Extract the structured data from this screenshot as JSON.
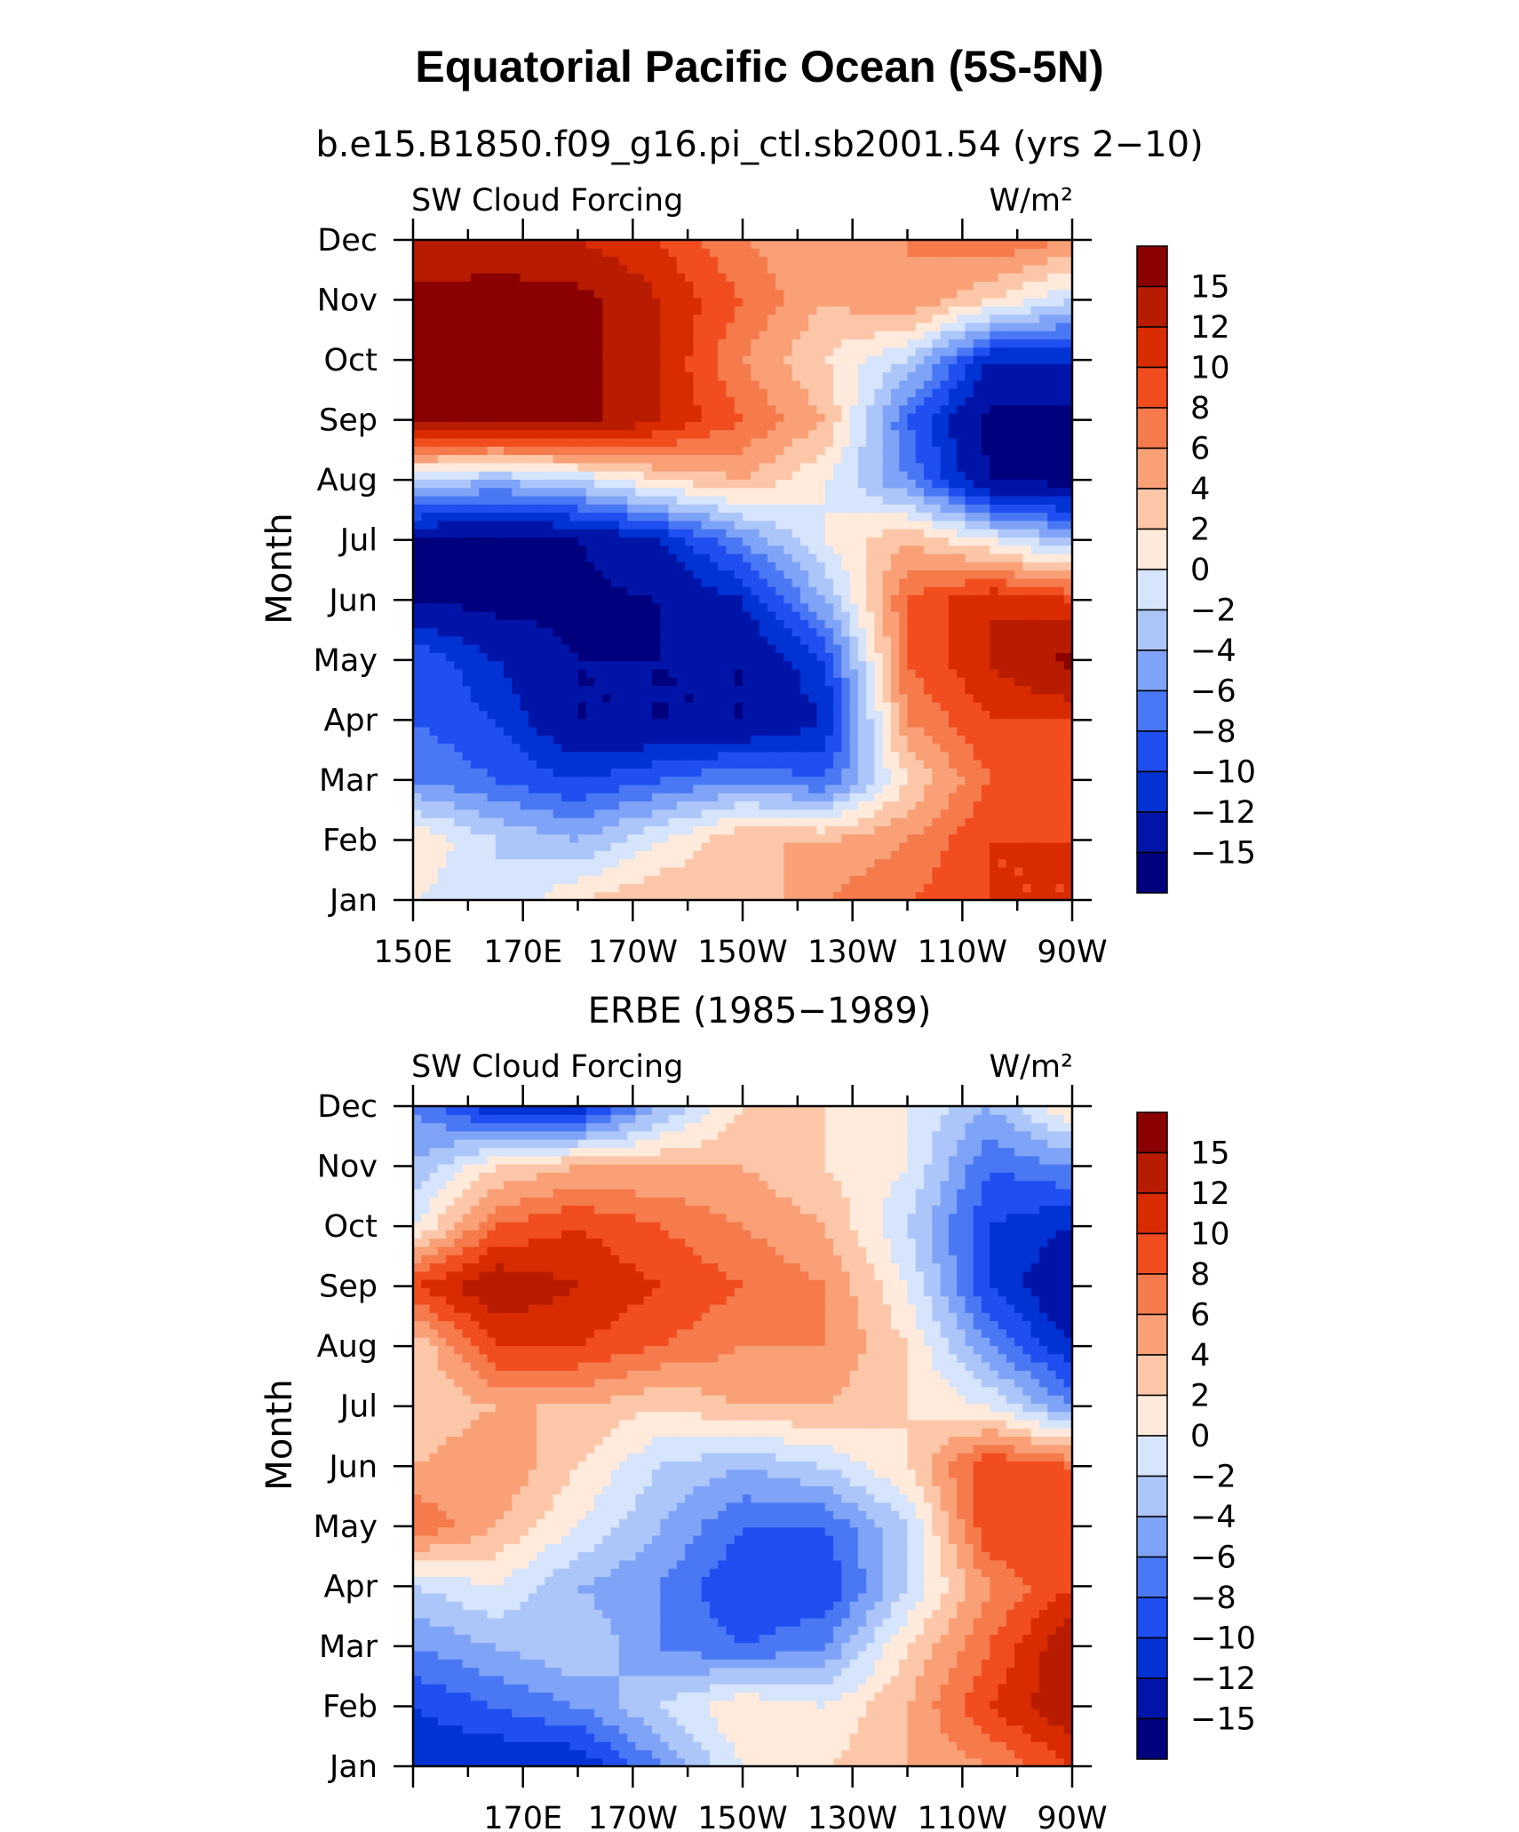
{
  "figure": {
    "title": "Equatorial Pacific Ocean (5S-5N)"
  },
  "colorbar": {
    "levels": [
      -15,
      -12,
      -10,
      -8,
      -6,
      -4,
      -2,
      0,
      2,
      4,
      6,
      8,
      10,
      12,
      15
    ],
    "labels": [
      "15",
      "12",
      "10",
      "8",
      "6",
      "4",
      "2",
      "0",
      "−2",
      "−4",
      "−6",
      "−8",
      "−10",
      "−12",
      "−15"
    ],
    "colors": [
      "#00007f",
      "#0015a8",
      "#0032d4",
      "#1f4ff0",
      "#4a78f5",
      "#7fa4f7",
      "#adc6f9",
      "#d6e4fc",
      "#ffeadb",
      "#fcc7a9",
      "#f9a077",
      "#f57a4c",
      "#f14d1f",
      "#d92b00",
      "#b81c00",
      "#8b0000"
    ]
  },
  "chart_data": [
    {
      "type": "heatmap",
      "subtitle": "b.e15.B1850.f09_g16.pi_ctl.sb2001.54 (yrs 2−10)",
      "left_label": "SW Cloud Forcing",
      "right_label": "W/m²",
      "ylabel": "Month",
      "x_tick_labels": [
        "150E",
        "170E",
        "170W",
        "150W",
        "130W",
        "110W",
        "90W"
      ],
      "y_tick_labels": [
        "Jan",
        "Feb",
        "Mar",
        "Apr",
        "May",
        "Jun",
        "Jul",
        "Aug",
        "Sep",
        "Oct",
        "Nov",
        "Dec"
      ],
      "x_lon_east": [
        150,
        165,
        180,
        195,
        210,
        225,
        240,
        255,
        270
      ],
      "y_month": [
        1,
        2,
        3,
        4,
        5,
        6,
        7,
        8,
        9,
        10,
        11,
        12
      ],
      "z": [
        [
          0,
          -2,
          2,
          4,
          2,
          6,
          8,
          10,
          10
        ],
        [
          2,
          -2,
          -4,
          0,
          4,
          4,
          6,
          10,
          10
        ],
        [
          -6,
          -8,
          -10,
          -8,
          -6,
          -8,
          2,
          8,
          10
        ],
        [
          -8,
          -10,
          -15,
          -15,
          -15,
          -12,
          6,
          10,
          10
        ],
        [
          -8,
          -12,
          -15,
          -15,
          -15,
          -10,
          8,
          12,
          16
        ],
        [
          -15,
          -16,
          -16,
          -15,
          -12,
          -4,
          8,
          12,
          10
        ],
        [
          -15,
          -16,
          -15,
          -12,
          -6,
          0,
          4,
          0,
          -4
        ],
        [
          -2,
          -4,
          -2,
          2,
          4,
          0,
          -6,
          -15,
          -16
        ],
        [
          16,
          16,
          16,
          12,
          8,
          4,
          -8,
          -16,
          -16
        ],
        [
          16,
          16,
          16,
          12,
          6,
          2,
          -2,
          -12,
          -12
        ],
        [
          16,
          16,
          16,
          12,
          8,
          4,
          6,
          2,
          -2
        ],
        [
          12,
          14,
          12,
          10,
          6,
          4,
          6,
          8,
          6
        ]
      ],
      "xlim": [
        150,
        270
      ],
      "ylim": [
        1,
        12
      ]
    },
    {
      "type": "heatmap",
      "subtitle": "ERBE (1985−1989)",
      "left_label": "SW Cloud Forcing",
      "right_label": "W/m²",
      "ylabel": "Month",
      "x_tick_labels": [
        "",
        "170E",
        "170W",
        "150W",
        "130W",
        "110W",
        "90W"
      ],
      "y_tick_labels": [
        "Jan",
        "Feb",
        "Mar",
        "Apr",
        "May",
        "Jun",
        "Jul",
        "Aug",
        "Sep",
        "Oct",
        "Nov",
        "Dec"
      ],
      "x_lon_east": [
        150,
        165,
        180,
        195,
        210,
        225,
        240,
        255,
        270
      ],
      "y_month": [
        1,
        2,
        3,
        4,
        5,
        6,
        7,
        8,
        9,
        10,
        11,
        12
      ],
      "z": [
        [
          -12,
          -12,
          -12,
          -6,
          0,
          2,
          4,
          6,
          10
        ],
        [
          -10,
          -8,
          -6,
          -2,
          2,
          0,
          4,
          10,
          14
        ],
        [
          -6,
          -4,
          -2,
          -6,
          -8,
          -6,
          2,
          8,
          14
        ],
        [
          -2,
          0,
          -4,
          -6,
          -10,
          -10,
          -2,
          6,
          10
        ],
        [
          8,
          4,
          0,
          -4,
          -8,
          -8,
          -2,
          10,
          10
        ],
        [
          4,
          6,
          2,
          -2,
          -4,
          -2,
          2,
          10,
          8
        ],
        [
          2,
          4,
          4,
          2,
          4,
          4,
          2,
          0,
          -6
        ],
        [
          2,
          10,
          10,
          8,
          6,
          6,
          2,
          -6,
          -12
        ],
        [
          10,
          14,
          12,
          10,
          8,
          6,
          0,
          -10,
          -15
        ],
        [
          0,
          8,
          10,
          8,
          6,
          4,
          -2,
          -10,
          -12
        ],
        [
          -4,
          2,
          4,
          4,
          4,
          2,
          0,
          -8,
          -6
        ],
        [
          -6,
          -12,
          -12,
          -4,
          2,
          2,
          0,
          -4,
          2
        ]
      ],
      "xlim": [
        150,
        270
      ],
      "ylim": [
        1,
        12
      ]
    }
  ]
}
